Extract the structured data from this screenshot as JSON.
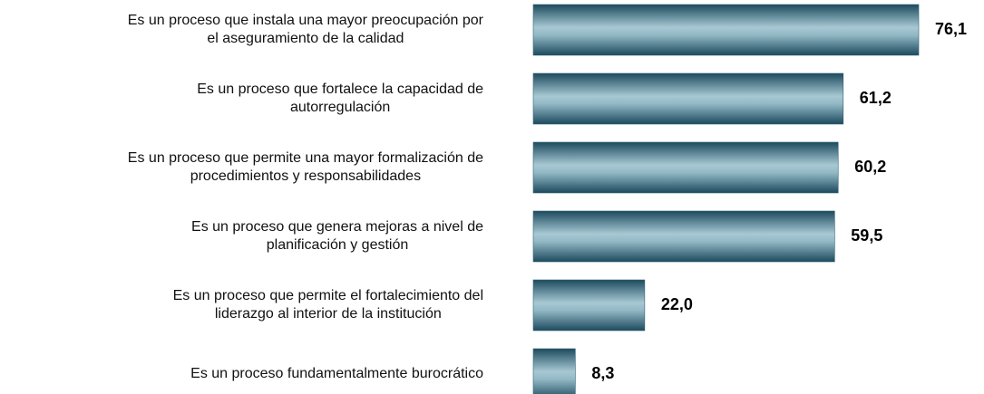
{
  "chart_data": {
    "type": "bar",
    "orientation": "horizontal",
    "categories": [
      "Es un proceso que instala una mayor preocupación por\nel aseguramiento de la calidad",
      "Es un proceso que fortalece la capacidad de\nautorregulación",
      "Es un proceso que permite una mayor formalización de\nprocedimientos y responsabilidades",
      "Es un proceso que genera mejoras a nivel de\nplanificación y gestión",
      "Es un proceso que permite el fortalecimiento del\nliderazgo al interior de la institución",
      "Es un proceso fundamentalmente burocrático"
    ],
    "values": [
      76.1,
      61.2,
      60.2,
      59.5,
      22.0,
      8.3
    ],
    "value_labels": [
      "76,1",
      "61,2",
      "60,2",
      "59,5",
      "22,0",
      "8,3"
    ],
    "color": "#2f6176"
  }
}
